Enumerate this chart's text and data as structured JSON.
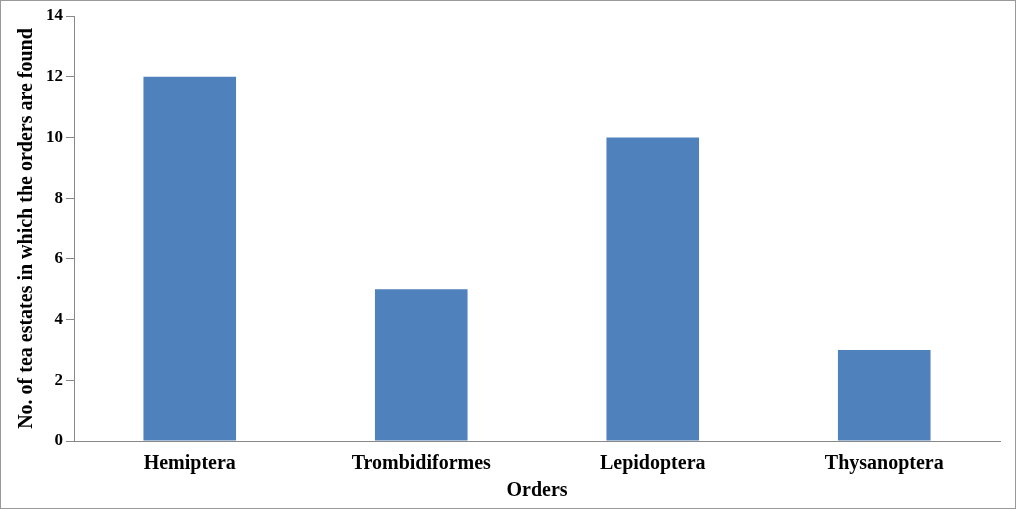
{
  "chart_data": {
    "type": "bar",
    "xlabel": "Orders",
    "ylabel": "No. of tea estates in which the orders are found",
    "categories": [
      "Hemiptera",
      "Trombidiformes",
      "Lepidoptera",
      "Thysanoptera"
    ],
    "values": [
      12,
      5,
      10,
      3
    ],
    "color": "#4f81bd",
    "ylim": [
      0,
      14
    ],
    "yticks": [
      0,
      2,
      4,
      6,
      8,
      10,
      12,
      14
    ],
    "grid": false,
    "legend": false
  }
}
